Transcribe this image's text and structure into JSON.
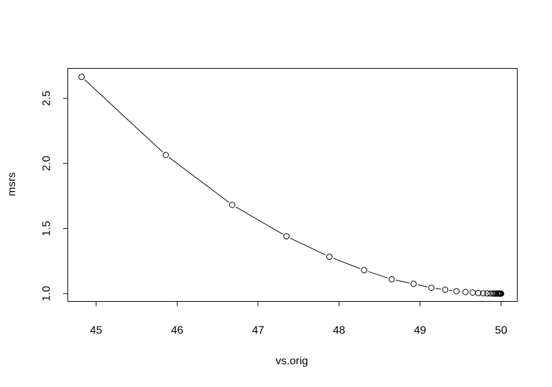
{
  "chart_data": {
    "type": "scatter",
    "title": "",
    "xlabel": "vs.orig",
    "ylabel": "msrs",
    "xlim": [
      44.65,
      50.2
    ],
    "ylim": [
      0.94,
      2.73
    ],
    "x_ticks": [
      "45",
      "46",
      "47",
      "48",
      "49",
      "50"
    ],
    "y_ticks": [
      "1.0",
      "1.5",
      "2.0",
      "2.5"
    ],
    "grid": false,
    "legend": "none",
    "point_style": "open-circle",
    "connect_with_line": true,
    "colors": {
      "line": "#000000",
      "points": "#000000",
      "background": "#ffffff"
    },
    "series": [
      {
        "x": [
          44.82,
          45.86,
          46.68,
          47.35,
          47.88,
          48.31,
          48.65,
          48.92,
          49.14,
          49.31,
          49.45,
          49.56,
          49.65,
          49.72,
          49.78,
          49.83,
          49.87,
          49.9,
          49.92,
          49.94,
          49.955,
          49.965,
          49.975,
          49.982,
          49.988,
          49.993,
          49.997,
          50.0
        ],
        "y": [
          2.665,
          2.065,
          1.682,
          1.44,
          1.283,
          1.18,
          1.11,
          1.075,
          1.045,
          1.03,
          1.018,
          1.012,
          1.008,
          1.005,
          1.003,
          1.002,
          1.001,
          1.001,
          1.0,
          1.0,
          1.0,
          1.0,
          1.0,
          1.0,
          1.0,
          1.0,
          1.0,
          1.0
        ]
      }
    ]
  }
}
